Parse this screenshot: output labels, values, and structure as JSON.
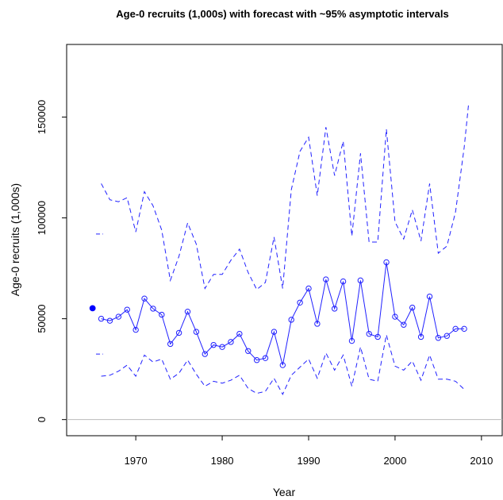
{
  "chart_data": {
    "type": "line",
    "title": "Age-0 recruits (1,000s) with forecast with ~95% asymptotic intervals",
    "xlabel": "Year",
    "ylabel": "Age-0 recruits (1,000s)",
    "xlim": [
      1962,
      2012.4
    ],
    "ylim": [
      -8000,
      186000
    ],
    "x_ticks": [
      1970,
      1980,
      1990,
      2000,
      2010
    ],
    "x_tick_labels": [
      "1970",
      "1980",
      "1990",
      "2000",
      "2010"
    ],
    "y_ticks": [
      0,
      50000,
      100000,
      150000
    ],
    "y_tick_labels": [
      "0",
      "50000",
      "100000",
      "150000"
    ],
    "grid": false,
    "reference_line_y": 0,
    "colors": {
      "series": "#2020ff",
      "reference": "#bbbbbb",
      "frame": "#000000"
    },
    "initial_point": {
      "year": 1965,
      "value": 55200
    },
    "initial_interval": {
      "year": 1965.8,
      "upper": 92000,
      "lower": 32500
    },
    "series": [
      {
        "style": "solid-with-open-circles",
        "x": [
          1966,
          1967,
          1968,
          1969,
          1970,
          1971,
          1972,
          1973,
          1974,
          1975,
          1976,
          1977,
          1978,
          1979,
          1980,
          1981,
          1982,
          1983,
          1984,
          1985,
          1986,
          1987,
          1988,
          1989,
          1990,
          1991,
          1992,
          1993,
          1994,
          1995,
          1996,
          1997,
          1998,
          1999,
          2000,
          2001,
          2002,
          2003,
          2004,
          2005,
          2006,
          2007,
          2008
        ],
        "values": [
          50000,
          49000,
          51000,
          54500,
          44500,
          60000,
          55000,
          52000,
          37500,
          43000,
          53500,
          43500,
          32500,
          37000,
          36000,
          38500,
          42500,
          34000,
          29500,
          30500,
          43500,
          27000,
          49500,
          58000,
          65000,
          47500,
          69500,
          55000,
          68500,
          39000,
          69000,
          42500,
          41000,
          78000,
          51000,
          47000,
          55500,
          41000,
          61000,
          40500,
          41500,
          45000,
          45000
        ]
      },
      {
        "style": "dashed",
        "x": [
          1966,
          1967,
          1968,
          1969,
          1970,
          1971,
          1972,
          1973,
          1974,
          1975,
          1976,
          1977,
          1978,
          1979,
          1980,
          1981,
          1982,
          1983,
          1984,
          1985,
          1986,
          1987,
          1988,
          1989,
          1990,
          1991,
          1992,
          1993,
          1994,
          1995,
          1996,
          1997,
          1998,
          1999,
          2000,
          2001,
          2002,
          2003,
          2004,
          2005,
          2006,
          2007,
          2008,
          2008.5
        ],
        "values": [
          117000,
          109000,
          108000,
          110000,
          93000,
          113000,
          106000,
          94000,
          69000,
          81000,
          97500,
          87000,
          65000,
          72000,
          72000,
          79000,
          84500,
          73000,
          64500,
          68000,
          90500,
          65000,
          114000,
          133000,
          140000,
          111000,
          145000,
          121000,
          138000,
          91000,
          132000,
          88000,
          88000,
          144000,
          98000,
          89500,
          104000,
          88500,
          117000,
          82500,
          86000,
          103000,
          135000,
          156000
        ]
      },
      {
        "style": "dashed",
        "x": [
          1966,
          1967,
          1968,
          1969,
          1970,
          1971,
          1972,
          1973,
          1974,
          1975,
          1976,
          1977,
          1978,
          1979,
          1980,
          1981,
          1982,
          1983,
          1984,
          1985,
          1986,
          1987,
          1988,
          1989,
          1990,
          1991,
          1992,
          1993,
          1994,
          1995,
          1996,
          1997,
          1998,
          1999,
          2000,
          2001,
          2002,
          2003,
          2004,
          2005,
          2006,
          2007,
          2008
        ],
        "values": [
          21500,
          22000,
          24000,
          27000,
          21500,
          32000,
          28500,
          30000,
          20000,
          23000,
          29500,
          22500,
          16500,
          19000,
          18000,
          19500,
          22000,
          15500,
          13000,
          14000,
          20500,
          12500,
          22000,
          26000,
          30000,
          20500,
          33000,
          24500,
          32000,
          16500,
          36000,
          20000,
          19000,
          42000,
          26500,
          24500,
          29000,
          19500,
          32000,
          20000,
          20000,
          19000,
          15000
        ]
      }
    ]
  }
}
